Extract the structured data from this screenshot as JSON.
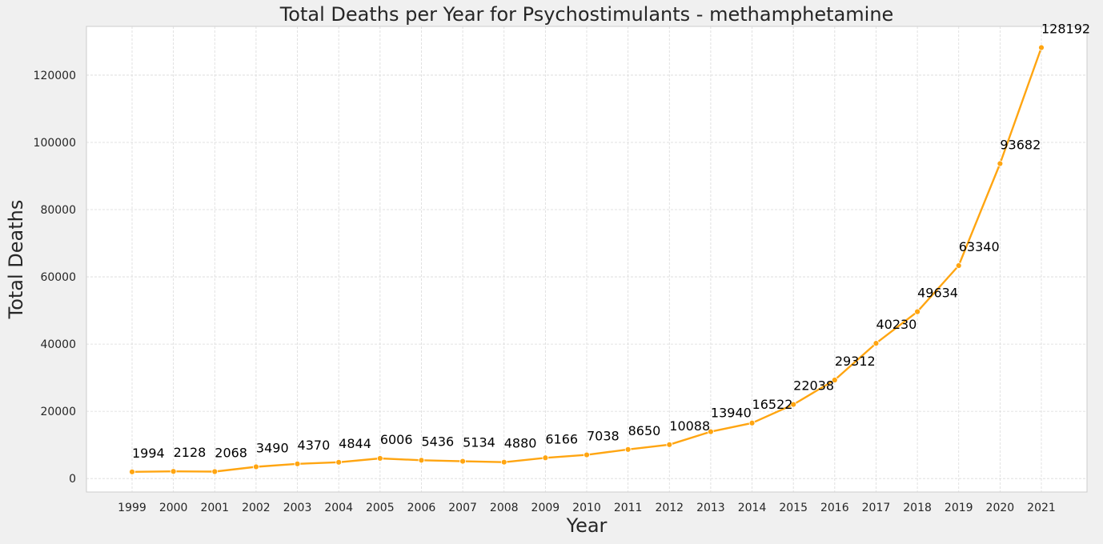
{
  "chart_data": {
    "type": "line",
    "title": "Total Deaths per Year for Psychostimulants - methamphetamine",
    "xlabel": "Year",
    "ylabel": "Total Deaths",
    "x": [
      "1999",
      "2000",
      "2001",
      "2002",
      "2003",
      "2004",
      "2005",
      "2006",
      "2007",
      "2008",
      "2009",
      "2010",
      "2011",
      "2012",
      "2013",
      "2014",
      "2015",
      "2016",
      "2017",
      "2018",
      "2019",
      "2020",
      "2021"
    ],
    "values": [
      1994,
      2128,
      2068,
      3490,
      4370,
      4844,
      6006,
      5436,
      5134,
      4880,
      6166,
      7038,
      8650,
      10088,
      13940,
      16522,
      22038,
      29312,
      40230,
      49634,
      63340,
      93682,
      128192
    ],
    "data_labels": [
      "1994",
      "2128",
      "2068",
      "3490",
      "4370",
      "4844",
      "6006",
      "5436",
      "5134",
      "4880",
      "6166",
      "7038",
      "8650",
      "10088",
      "13940",
      "16522",
      "22038",
      "29312",
      "40230",
      "49634",
      "63340",
      "93682",
      "128192"
    ],
    "yticks": [
      0,
      20000,
      40000,
      60000,
      80000,
      100000,
      120000
    ],
    "ylim": [
      -4000,
      134500
    ],
    "grid": true,
    "colors": {
      "line": "#FFA511",
      "plot_background": "#ffffff",
      "page_background": "#f0f0f0",
      "frame": "#cccccc"
    }
  }
}
